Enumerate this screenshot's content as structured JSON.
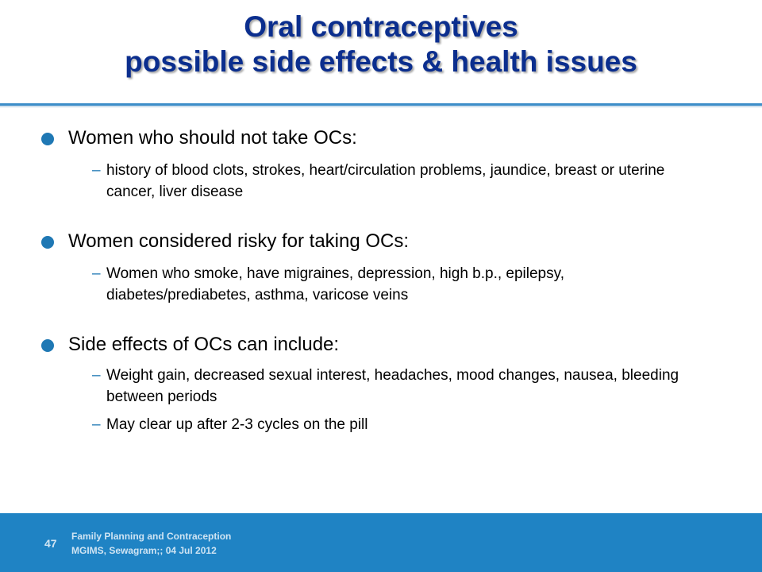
{
  "slide": {
    "title_line1": "Oral contraceptives",
    "title_line2": "possible side effects & health issues",
    "bullets": [
      {
        "text": "Women who should not take OCs:",
        "subs": [
          "– ",
          " history of blood clots, strokes, heart/circulation problems, jaundice, breast or uterine cancer, liver disease"
        ]
      },
      {
        "text": "Women considered risky for taking OCs:",
        "subs": [
          "–",
          "Women who smoke, have migraines, depression, high b.p., epilepsy, diabetes/prediabetes, asthma, varicose veins"
        ]
      },
      {
        "text": "Side effects of OCs can include:",
        "subs": [
          "–",
          "Weight gain, decreased sexual interest, headaches, mood changes, nausea, bleeding between periods",
          "–",
          "May clear up after 2-3 cycles on the pill"
        ]
      }
    ]
  },
  "footer": {
    "page_number": "47",
    "line1": "Family Planning and Contraception",
    "line2": "MGIMS, Sewagram;; 04 Jul  2012"
  },
  "colors": {
    "title": "#0b2e8e",
    "accent": "#1f78b4",
    "footer_bg": "#1f83c4"
  }
}
